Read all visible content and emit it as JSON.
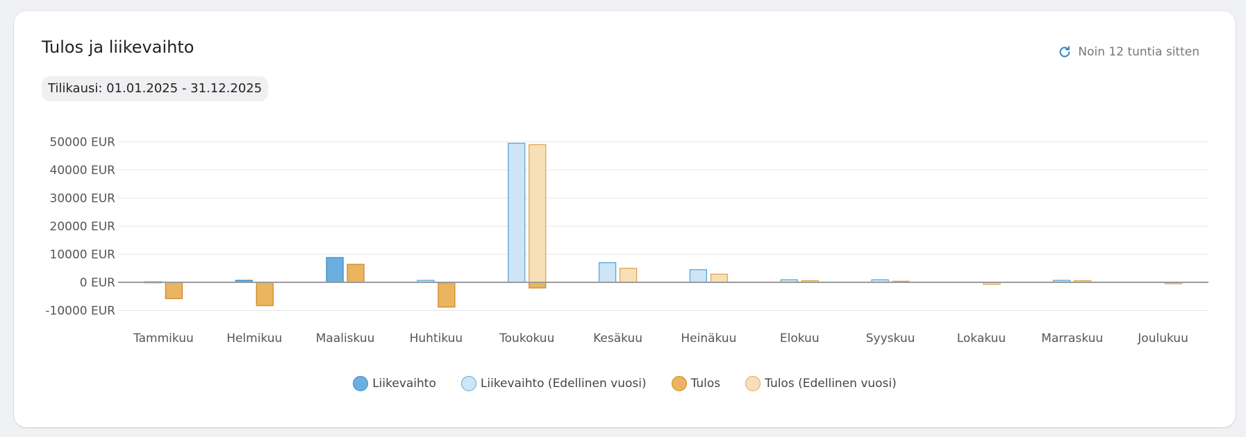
{
  "card": {
    "title": "Tulos ja liikevaihto",
    "period": "Tilikausi: 01.01.2025 - 31.12.2025",
    "updated": "Noin 12 tuntia sitten",
    "refresh_icon": "refresh-icon"
  },
  "colors": {
    "liikevaihto_fill": "#6aafe0",
    "liikevaihto_stroke": "#3a8cc8",
    "liikevaihto_prev_fill": "#cde5f5",
    "liikevaihto_prev_stroke": "#5aa6da",
    "tulos_fill": "#ebb45f",
    "tulos_stroke": "#cc8a2c",
    "tulos_prev_fill": "#f7e0b8",
    "tulos_prev_stroke": "#dda451",
    "grid": "#e6e6e6",
    "zero_line": "#9a9a9a",
    "accent": "#2a86c8"
  },
  "chart_data": {
    "type": "bar",
    "categories": [
      "Tammikuu",
      "Helmikuu",
      "Maaliskuu",
      "Huhtikuu",
      "Toukokuu",
      "Kesäkuu",
      "Heinäkuu",
      "Elokuu",
      "Syyskuu",
      "Lokakuu",
      "Marraskuu",
      "Joulukuu"
    ],
    "y_ticks": [
      "50000 EUR",
      "40000 EUR",
      "30000 EUR",
      "20000 EUR",
      "10000 EUR",
      "0 EUR",
      "-10000 EUR"
    ],
    "y_tick_values": [
      50000,
      40000,
      30000,
      20000,
      10000,
      0,
      -10000
    ],
    "ylim": [
      -12000,
      51000
    ],
    "grid": true,
    "legend_position": "bottom",
    "series": [
      {
        "name": "Liikevaihto",
        "values": [
          0,
          700,
          8800,
          0,
          0,
          0,
          0,
          0,
          0,
          0,
          0,
          0
        ]
      },
      {
        "name": "Liikevaihto (Edellinen vuosi)",
        "values": [
          200,
          0,
          0,
          700,
          49500,
          7000,
          4500,
          900,
          900,
          0,
          700,
          0
        ]
      },
      {
        "name": "Tulos",
        "values": [
          -5800,
          -8300,
          6400,
          -8800,
          -2000,
          0,
          0,
          0,
          0,
          0,
          0,
          0
        ]
      },
      {
        "name": "Tulos (Edellinen vuosi)",
        "values": [
          0,
          0,
          0,
          -400,
          49000,
          5000,
          2900,
          600,
          400,
          -700,
          600,
          -500
        ]
      }
    ]
  }
}
